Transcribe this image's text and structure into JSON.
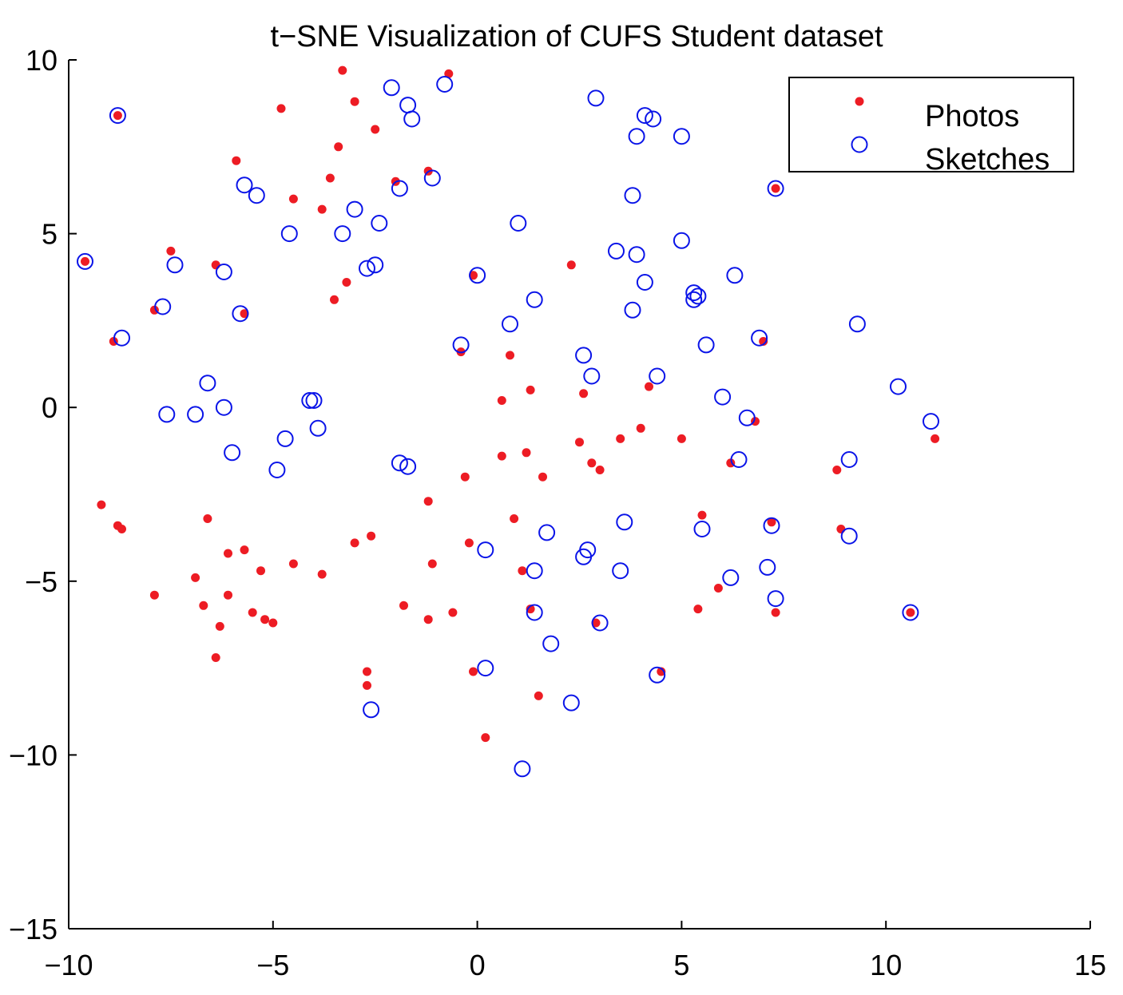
{
  "chart_data": {
    "type": "scatter",
    "title": "t−SNE Visualization of CUFS Student dataset",
    "xlabel": "",
    "ylabel": "",
    "xlim": [
      -10,
      15
    ],
    "ylim": [
      -15,
      10
    ],
    "xticks": [
      -10,
      -5,
      0,
      5,
      10,
      15
    ],
    "yticks": [
      -15,
      -10,
      -5,
      0,
      5,
      10
    ],
    "xtick_labels": [
      "−10",
      "−5",
      "0",
      "5",
      "10",
      "15"
    ],
    "ytick_labels": [
      "−15",
      "−10",
      "−5",
      "0",
      "5",
      "10"
    ],
    "grid": false,
    "legend_position": "top-right",
    "series": [
      {
        "name": "Photos",
        "marker": "filled-dot",
        "color": "#ed1c24",
        "points": [
          [
            -3.3,
            9.7
          ],
          [
            -0.7,
            9.6
          ],
          [
            -4.8,
            8.6
          ],
          [
            -3.0,
            8.8
          ],
          [
            -8.8,
            8.4
          ],
          [
            -2.5,
            8.0
          ],
          [
            -3.4,
            7.5
          ],
          [
            -5.9,
            7.1
          ],
          [
            -1.2,
            6.8
          ],
          [
            -2.0,
            6.5
          ],
          [
            -3.6,
            6.6
          ],
          [
            -4.5,
            6.0
          ],
          [
            -3.8,
            5.7
          ],
          [
            7.3,
            6.3
          ],
          [
            -7.5,
            4.5
          ],
          [
            -9.6,
            4.2
          ],
          [
            -6.4,
            4.1
          ],
          [
            2.3,
            4.1
          ],
          [
            -3.2,
            3.6
          ],
          [
            -0.1,
            3.8
          ],
          [
            -3.5,
            3.1
          ],
          [
            -7.9,
            2.8
          ],
          [
            -5.7,
            2.7
          ],
          [
            -8.9,
            1.9
          ],
          [
            -0.4,
            1.6
          ],
          [
            0.8,
            1.5
          ],
          [
            7.0,
            1.9
          ],
          [
            0.6,
            0.2
          ],
          [
            1.3,
            0.5
          ],
          [
            2.6,
            0.4
          ],
          [
            4.2,
            0.6
          ],
          [
            6.8,
            -0.4
          ],
          [
            11.2,
            -0.9
          ],
          [
            2.5,
            -1.0
          ],
          [
            3.5,
            -0.9
          ],
          [
            4.0,
            -0.6
          ],
          [
            5.0,
            -0.9
          ],
          [
            0.6,
            -1.4
          ],
          [
            1.2,
            -1.3
          ],
          [
            2.8,
            -1.6
          ],
          [
            3.0,
            -1.8
          ],
          [
            6.2,
            -1.6
          ],
          [
            8.8,
            -1.8
          ],
          [
            -0.3,
            -2.0
          ],
          [
            1.6,
            -2.0
          ],
          [
            -9.2,
            -2.8
          ],
          [
            -1.2,
            -2.7
          ],
          [
            -6.6,
            -3.2
          ],
          [
            0.9,
            -3.2
          ],
          [
            5.5,
            -3.1
          ],
          [
            7.2,
            -3.3
          ],
          [
            -8.8,
            -3.4
          ],
          [
            -8.7,
            -3.5
          ],
          [
            8.9,
            -3.5
          ],
          [
            -2.6,
            -3.7
          ],
          [
            -3.0,
            -3.9
          ],
          [
            -0.2,
            -3.9
          ],
          [
            -5.7,
            -4.1
          ],
          [
            -6.1,
            -4.2
          ],
          [
            -4.5,
            -4.5
          ],
          [
            -1.1,
            -4.5
          ],
          [
            -5.3,
            -4.7
          ],
          [
            -3.8,
            -4.8
          ],
          [
            1.1,
            -4.7
          ],
          [
            -6.9,
            -4.9
          ],
          [
            -7.9,
            -5.4
          ],
          [
            -6.1,
            -5.4
          ],
          [
            -6.7,
            -5.7
          ],
          [
            5.9,
            -5.2
          ],
          [
            -1.8,
            -5.7
          ],
          [
            -5.5,
            -5.9
          ],
          [
            -0.6,
            -5.9
          ],
          [
            1.3,
            -5.8
          ],
          [
            5.4,
            -5.8
          ],
          [
            7.3,
            -5.9
          ],
          [
            10.6,
            -5.9
          ],
          [
            -5.2,
            -6.1
          ],
          [
            -1.2,
            -6.1
          ],
          [
            -5.0,
            -6.2
          ],
          [
            -6.3,
            -6.3
          ],
          [
            2.9,
            -6.2
          ],
          [
            -6.4,
            -7.2
          ],
          [
            -2.7,
            -7.6
          ],
          [
            -0.1,
            -7.6
          ],
          [
            4.5,
            -7.6
          ],
          [
            -2.7,
            -8.0
          ],
          [
            1.5,
            -8.3
          ],
          [
            0.2,
            -9.5
          ]
        ]
      },
      {
        "name": "Sketches",
        "marker": "open-circle",
        "color": "#0a14e8",
        "points": [
          [
            -0.8,
            9.3
          ],
          [
            -2.1,
            9.2
          ],
          [
            2.9,
            8.9
          ],
          [
            -1.7,
            8.7
          ],
          [
            4.1,
            8.4
          ],
          [
            -8.8,
            8.4
          ],
          [
            -1.6,
            8.3
          ],
          [
            4.3,
            8.3
          ],
          [
            3.9,
            7.8
          ],
          [
            5.0,
            7.8
          ],
          [
            -1.1,
            6.6
          ],
          [
            -5.7,
            6.4
          ],
          [
            -1.9,
            6.3
          ],
          [
            -5.4,
            6.1
          ],
          [
            3.8,
            6.1
          ],
          [
            7.3,
            6.3
          ],
          [
            -3.0,
            5.7
          ],
          [
            -2.4,
            5.3
          ],
          [
            1.0,
            5.3
          ],
          [
            -3.3,
            5.0
          ],
          [
            -4.6,
            5.0
          ],
          [
            5.0,
            4.8
          ],
          [
            3.4,
            4.5
          ],
          [
            3.9,
            4.4
          ],
          [
            -9.6,
            4.2
          ],
          [
            -7.4,
            4.1
          ],
          [
            -2.7,
            4.0
          ],
          [
            -2.5,
            4.1
          ],
          [
            -6.2,
            3.9
          ],
          [
            0.0,
            3.8
          ],
          [
            6.3,
            3.8
          ],
          [
            4.1,
            3.6
          ],
          [
            5.3,
            3.3
          ],
          [
            5.3,
            3.1
          ],
          [
            5.4,
            3.2
          ],
          [
            1.4,
            3.1
          ],
          [
            -7.7,
            2.9
          ],
          [
            3.8,
            2.8
          ],
          [
            -5.8,
            2.7
          ],
          [
            9.3,
            2.4
          ],
          [
            0.8,
            2.4
          ],
          [
            6.9,
            2.0
          ],
          [
            -8.7,
            2.0
          ],
          [
            -0.4,
            1.8
          ],
          [
            5.6,
            1.8
          ],
          [
            2.6,
            1.5
          ],
          [
            2.8,
            0.9
          ],
          [
            4.4,
            0.9
          ],
          [
            -6.6,
            0.7
          ],
          [
            10.3,
            0.6
          ],
          [
            -4.1,
            0.2
          ],
          [
            -4.0,
            0.2
          ],
          [
            6.0,
            0.3
          ],
          [
            -7.6,
            -0.2
          ],
          [
            -6.9,
            -0.2
          ],
          [
            -6.2,
            0.0
          ],
          [
            6.6,
            -0.3
          ],
          [
            11.1,
            -0.4
          ],
          [
            -3.9,
            -0.6
          ],
          [
            -4.7,
            -0.9
          ],
          [
            -6.0,
            -1.3
          ],
          [
            -1.9,
            -1.6
          ],
          [
            -1.7,
            -1.7
          ],
          [
            6.4,
            -1.5
          ],
          [
            9.1,
            -1.5
          ],
          [
            -4.9,
            -1.8
          ],
          [
            3.6,
            -3.3
          ],
          [
            1.7,
            -3.6
          ],
          [
            5.5,
            -3.5
          ],
          [
            7.2,
            -3.4
          ],
          [
            9.1,
            -3.7
          ],
          [
            0.2,
            -4.1
          ],
          [
            2.7,
            -4.1
          ],
          [
            2.6,
            -4.3
          ],
          [
            7.1,
            -4.6
          ],
          [
            1.4,
            -4.7
          ],
          [
            3.5,
            -4.7
          ],
          [
            6.2,
            -4.9
          ],
          [
            7.3,
            -5.5
          ],
          [
            1.4,
            -5.9
          ],
          [
            10.6,
            -5.9
          ],
          [
            3.0,
            -6.2
          ],
          [
            1.8,
            -6.8
          ],
          [
            0.2,
            -7.5
          ],
          [
            4.4,
            -7.7
          ],
          [
            2.3,
            -8.5
          ],
          [
            -2.6,
            -8.7
          ],
          [
            1.1,
            -10.4
          ]
        ]
      }
    ]
  }
}
